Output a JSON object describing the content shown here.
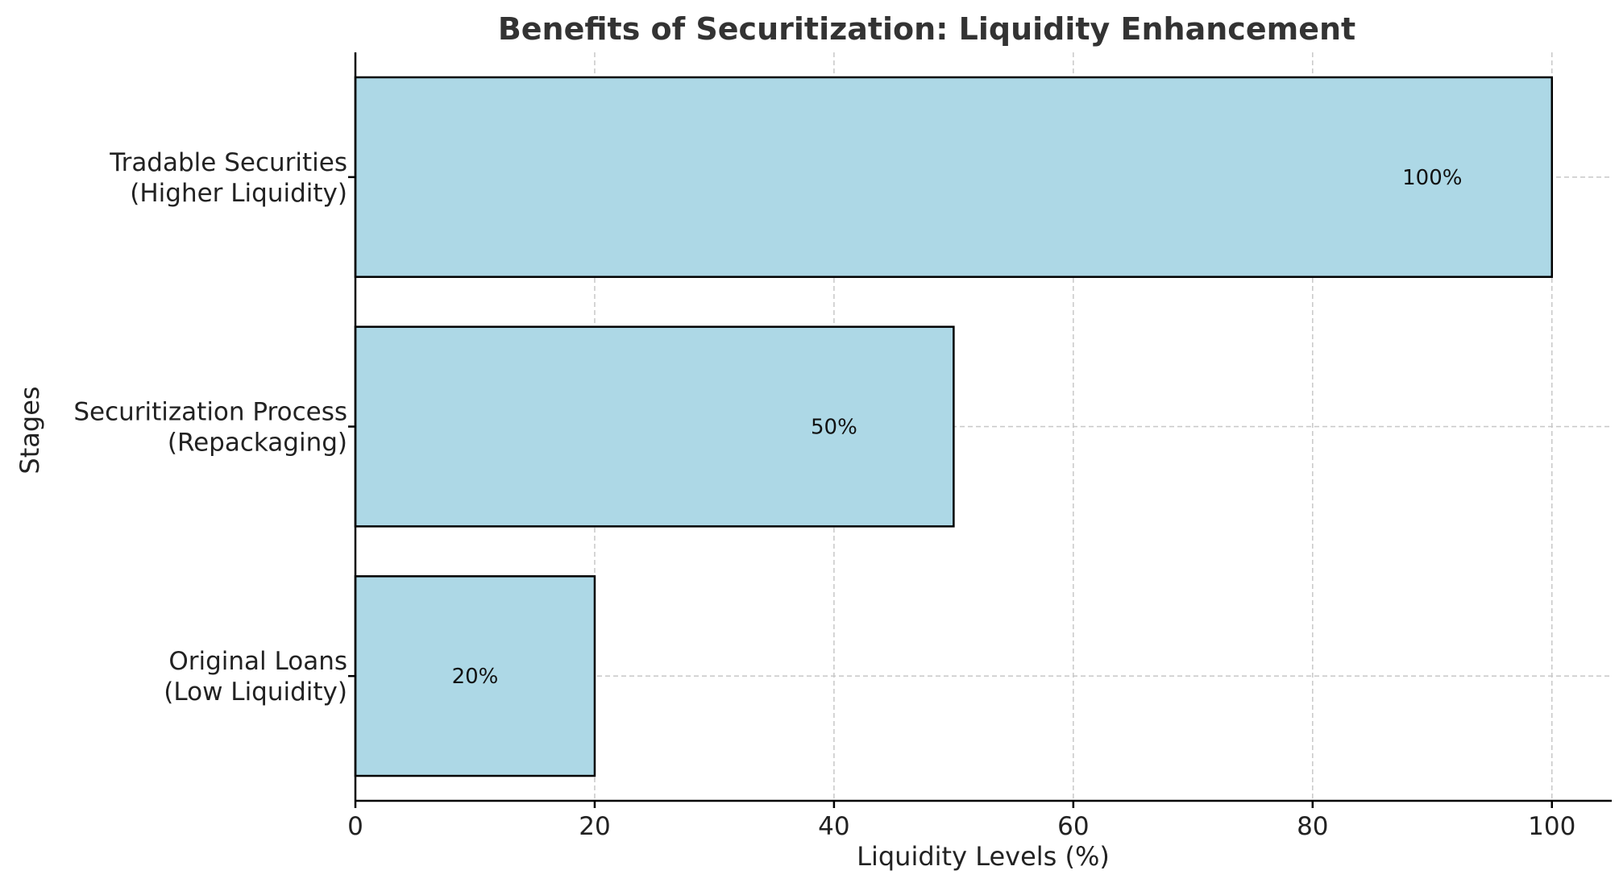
{
  "chart_data": {
    "type": "bar",
    "orientation": "horizontal",
    "title": "Benefits of Securitization: Liquidity Enhancement",
    "xlabel": "Liquidity Levels (%)",
    "ylabel": "Stages",
    "categories": [
      [
        "Original Loans",
        "(Low Liquidity)"
      ],
      [
        "Securitization Process",
        "(Repackaging)"
      ],
      [
        "Tradable Securities",
        "(Higher Liquidity)"
      ]
    ],
    "values": [
      20,
      50,
      100
    ],
    "data_labels": [
      "20%",
      "50%",
      "100%"
    ],
    "xlim": [
      0,
      105
    ],
    "xticks": [
      0,
      20,
      40,
      60,
      80,
      100
    ],
    "xtick_labels": [
      "0",
      "20",
      "40",
      "60",
      "80",
      "100"
    ],
    "grid": true,
    "bar_color": "#add8e6",
    "edge_color": "#000000",
    "grid_color": "#c8c8c8"
  }
}
